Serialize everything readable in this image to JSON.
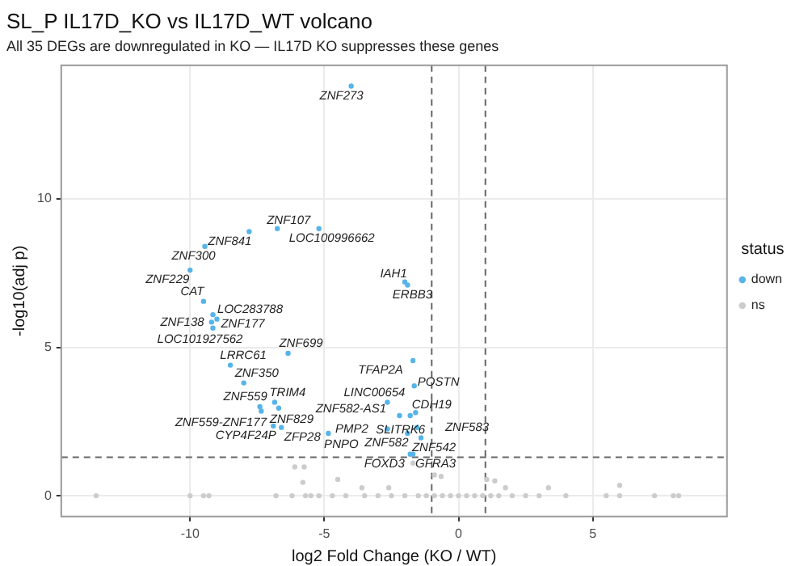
{
  "chart_data": {
    "type": "scatter",
    "title": "SL_P IL17D_KO vs IL17D_WT volcano",
    "subtitle": "All 35 DEGs are downregulated in KO — IL17D KO suppresses these genes",
    "xlabel": "log2 Fold Change (KO / WT)",
    "ylabel": "-log10(adj p)",
    "legend_title": "status",
    "legend": "right",
    "grid": true,
    "marker": "circle",
    "xlim": [
      -14.8,
      10
    ],
    "ylim": [
      -0.7,
      14.5
    ],
    "xticks": [
      -10,
      -5,
      0,
      5
    ],
    "yticks": [
      0,
      5,
      10
    ],
    "ref_lines": [
      {
        "axis": "x",
        "value": -1,
        "line_style": "dashed",
        "color": "#666666"
      },
      {
        "axis": "x",
        "value": 1,
        "line_style": "dashed",
        "color": "#666666"
      },
      {
        "axis": "y",
        "value": 1.3,
        "line_style": "dashed",
        "color": "#666666"
      }
    ],
    "series": [
      {
        "name": "down",
        "color": "#56b4e9",
        "x": [
          -4,
          -7.8,
          -6.75,
          -5.2,
          -9.45,
          -10,
          -2,
          -1.9,
          -9.5,
          -9.15,
          -9.2,
          -9.0,
          -9.15,
          -6.35,
          -8.5,
          -8,
          -7.4,
          -7.35,
          -6.85,
          -6.7,
          -6.9,
          -6.6,
          -4.85,
          -1.7,
          -1.65,
          -2.65,
          -2.2,
          -1.6,
          -1.8,
          -2.65,
          -1.9,
          -1.55,
          -1.4,
          -1.8,
          -1.7
        ],
        "values": [
          13.8,
          8.9,
          9,
          9,
          8.4,
          7.6,
          7.2,
          7.1,
          6.55,
          6.1,
          5.85,
          5.95,
          5.65,
          4.8,
          4.4,
          3.8,
          3,
          2.85,
          3.15,
          2.95,
          2.35,
          2.3,
          2.1,
          4.55,
          3.7,
          3.15,
          2.7,
          2.8,
          2.7,
          2.25,
          2.1,
          2.3,
          1.95,
          1.4,
          1.4
        ]
      },
      {
        "name": "ns",
        "color": "#cccccc",
        "x": [
          -13.5,
          -10,
          -9.5,
          -9.3,
          -6.8,
          -6.2,
          -5.7,
          -5.5,
          -5.2,
          -4.7,
          -4.2,
          -3.5,
          -3,
          -2.5,
          -2,
          -1.5,
          -1.2,
          -0.9,
          -0.6,
          -0.3,
          0,
          0.3,
          0.6,
          0.9,
          1.2,
          1.5,
          2,
          2.5,
          3,
          4,
          5.5,
          6,
          7.3,
          8,
          8.2,
          -6.1,
          -5.75,
          -5.8,
          -4.5,
          -3.6,
          -2.6,
          -1.7,
          -0.9,
          -0.65,
          1.05,
          1.35,
          1.75,
          3.35,
          6
        ],
        "values": [
          0,
          0,
          0,
          0,
          0,
          0,
          0,
          0,
          0,
          0,
          0,
          0,
          0,
          0,
          0,
          0,
          0,
          0,
          0,
          0,
          0,
          0,
          0,
          0,
          0,
          0,
          0,
          0,
          0,
          0,
          0,
          0,
          0,
          0,
          0,
          0.97,
          0.97,
          0.45,
          0.55,
          0.27,
          0.27,
          1.1,
          0.7,
          0.65,
          0.55,
          0.5,
          0.27,
          0.27,
          0.35
        ]
      }
    ],
    "annotations": [
      {
        "text": "ZNF273",
        "x": -4,
        "y": 13.8
      },
      {
        "text": "ZNF841",
        "x": -7.8,
        "y": 8.9
      },
      {
        "text": "ZNF107",
        "x": -6.75,
        "y": 9
      },
      {
        "text": "LOC100996662",
        "x": -5.2,
        "y": 9
      },
      {
        "text": "ZNF300",
        "x": -9.45,
        "y": 8.4
      },
      {
        "text": "ZNF229",
        "x": -10,
        "y": 7.6
      },
      {
        "text": "IAH1",
        "x": -2,
        "y": 7.2
      },
      {
        "text": "ERBB3",
        "x": -1.9,
        "y": 7.1
      },
      {
        "text": "CAT",
        "x": -9.5,
        "y": 6.55
      },
      {
        "text": "LOC283788",
        "x": -9.15,
        "y": 6.1
      },
      {
        "text": "ZNF138",
        "x": -9.15,
        "y": 5.85
      },
      {
        "text": "ZNF177",
        "x": -9.0,
        "y": 5.95
      },
      {
        "text": "LOC101927562",
        "x": -9.15,
        "y": 5.65
      },
      {
        "text": "ZNF699",
        "x": -6.35,
        "y": 4.8
      },
      {
        "text": "LRRC61",
        "x": -8.5,
        "y": 4.4
      },
      {
        "text": "ZNF350",
        "x": -8,
        "y": 3.8
      },
      {
        "text": "ZNF559",
        "x": -7.4,
        "y": 3
      },
      {
        "text": "ZNF559-ZNF177",
        "x": -7.35,
        "y": 2.85
      },
      {
        "text": "TRIM4",
        "x": -6.85,
        "y": 3.15
      },
      {
        "text": "ZNF829",
        "x": -6.7,
        "y": 2.95
      },
      {
        "text": "CYP4F24P",
        "x": -6.9,
        "y": 2.35
      },
      {
        "text": "ZFP28",
        "x": -6.6,
        "y": 2.3
      },
      {
        "text": "PNPO",
        "x": -4.85,
        "y": 2.1
      },
      {
        "text": "TFAP2A",
        "x": -1.7,
        "y": 4.55
      },
      {
        "text": "POSTN",
        "x": -1.65,
        "y": 3.7
      },
      {
        "text": "LINC00654",
        "x": -2.65,
        "y": 3.15
      },
      {
        "text": "ZNF582-AS1",
        "x": -2.2,
        "y": 2.7
      },
      {
        "text": "CDH19",
        "x": -1.6,
        "y": 2.8
      },
      {
        "text": "SLITRK6",
        "x": -1.8,
        "y": 2.7
      },
      {
        "text": "PMP2",
        "x": -2.65,
        "y": 2.25
      },
      {
        "text": "ZNF582",
        "x": -1.9,
        "y": 2.1
      },
      {
        "text": "ZNF583",
        "x": -1.55,
        "y": 2.3
      },
      {
        "text": "ZNF542",
        "x": -1.4,
        "y": 1.95
      },
      {
        "text": "FOXD3",
        "x": -1.8,
        "y": 1.4
      },
      {
        "text": "GFRA3",
        "x": -1.7,
        "y": 1.4
      }
    ]
  }
}
